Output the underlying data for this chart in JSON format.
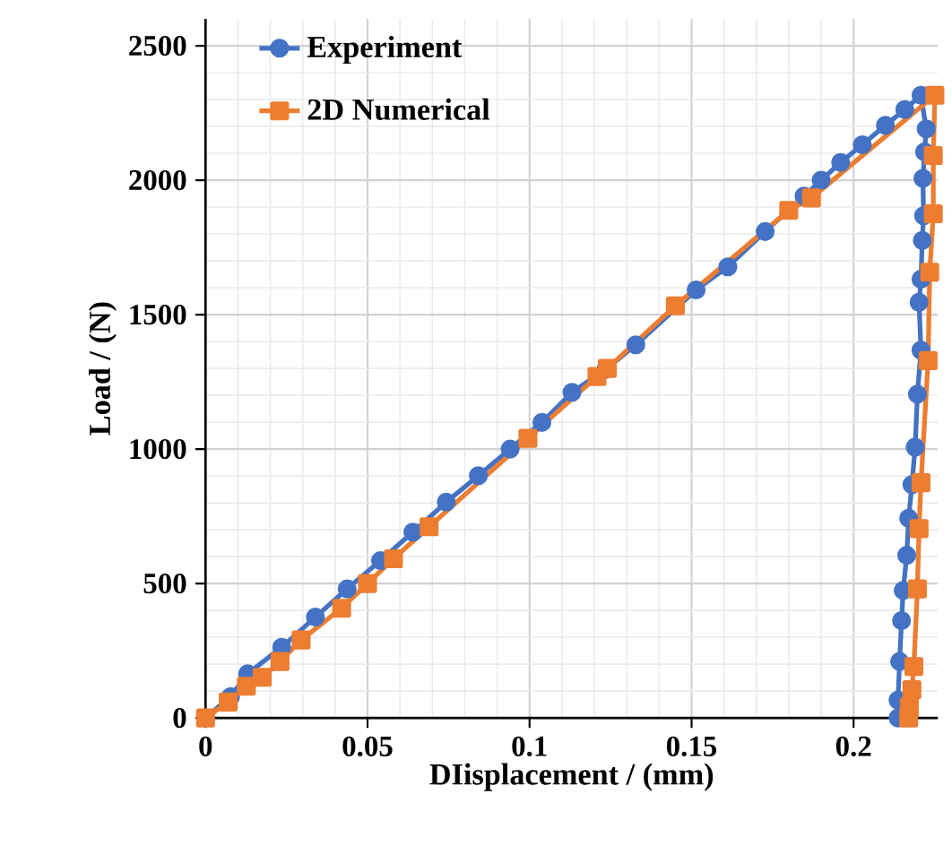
{
  "chart_data": {
    "type": "line",
    "xlabel": "DIisplacement / (mm)",
    "ylabel": "Load / (N)",
    "xlim": [
      0,
      0.226
    ],
    "ylim": [
      0,
      2600
    ],
    "xticks": [
      0,
      0.05,
      0.1,
      0.15,
      0.2
    ],
    "yticks": [
      0,
      500,
      1000,
      1500,
      2000,
      2500
    ],
    "grid": true,
    "legend": "top left",
    "line_style": "solid",
    "series": [
      {
        "name": "Experiment",
        "color": "#4472c4",
        "marker": "circle",
        "x": [
          0,
          0.0077,
          0.013,
          0.0235,
          0.0339,
          0.0437,
          0.054,
          0.064,
          0.0743,
          0.0842,
          0.094,
          0.1038,
          0.1131,
          0.1235,
          0.1328,
          0.1514,
          0.1612,
          0.1727,
          0.1847,
          0.19,
          0.196,
          0.2027,
          0.2098,
          0.2158,
          0.2208,
          0.2224,
          0.2219,
          0.2214,
          0.2216,
          0.2212,
          0.2208,
          0.2202,
          0.2208,
          0.2197,
          0.219,
          0.218,
          0.217,
          0.2164,
          0.2153,
          0.2148,
          0.2142,
          0.2137,
          0.2137
        ],
        "values": [
          0,
          79,
          164,
          263,
          375,
          480,
          585,
          691,
          803,
          901,
          1000,
          1099,
          1211,
          1296,
          1388,
          1592,
          1678,
          1809,
          1941,
          2000,
          2066,
          2132,
          2204,
          2263,
          2316,
          2191,
          2105,
          2007,
          1868,
          1776,
          1632,
          1546,
          1368,
          1204,
          1007,
          868,
          743,
          605,
          474,
          362,
          210,
          66,
          0
        ]
      },
      {
        "name": "2D Numerical",
        "color": "#ed7d31",
        "marker": "square",
        "x": [
          0,
          0.007,
          0.0126,
          0.0175,
          0.023,
          0.0295,
          0.042,
          0.05,
          0.058,
          0.069,
          0.0995,
          0.1208,
          0.124,
          0.145,
          0.18,
          0.187,
          0.2251,
          0.2246,
          0.2246,
          0.2235,
          0.223,
          0.2208,
          0.2202,
          0.2197,
          0.2186,
          0.218,
          0.2172,
          0.217
        ],
        "values": [
          0,
          59,
          118,
          151,
          210,
          290,
          408,
          500,
          592,
          711,
          1040,
          1270,
          1300,
          1533,
          1888,
          1934,
          2316,
          2092,
          1875,
          1658,
          1329,
          875,
          704,
          480,
          191,
          105,
          40,
          0
        ]
      }
    ]
  }
}
